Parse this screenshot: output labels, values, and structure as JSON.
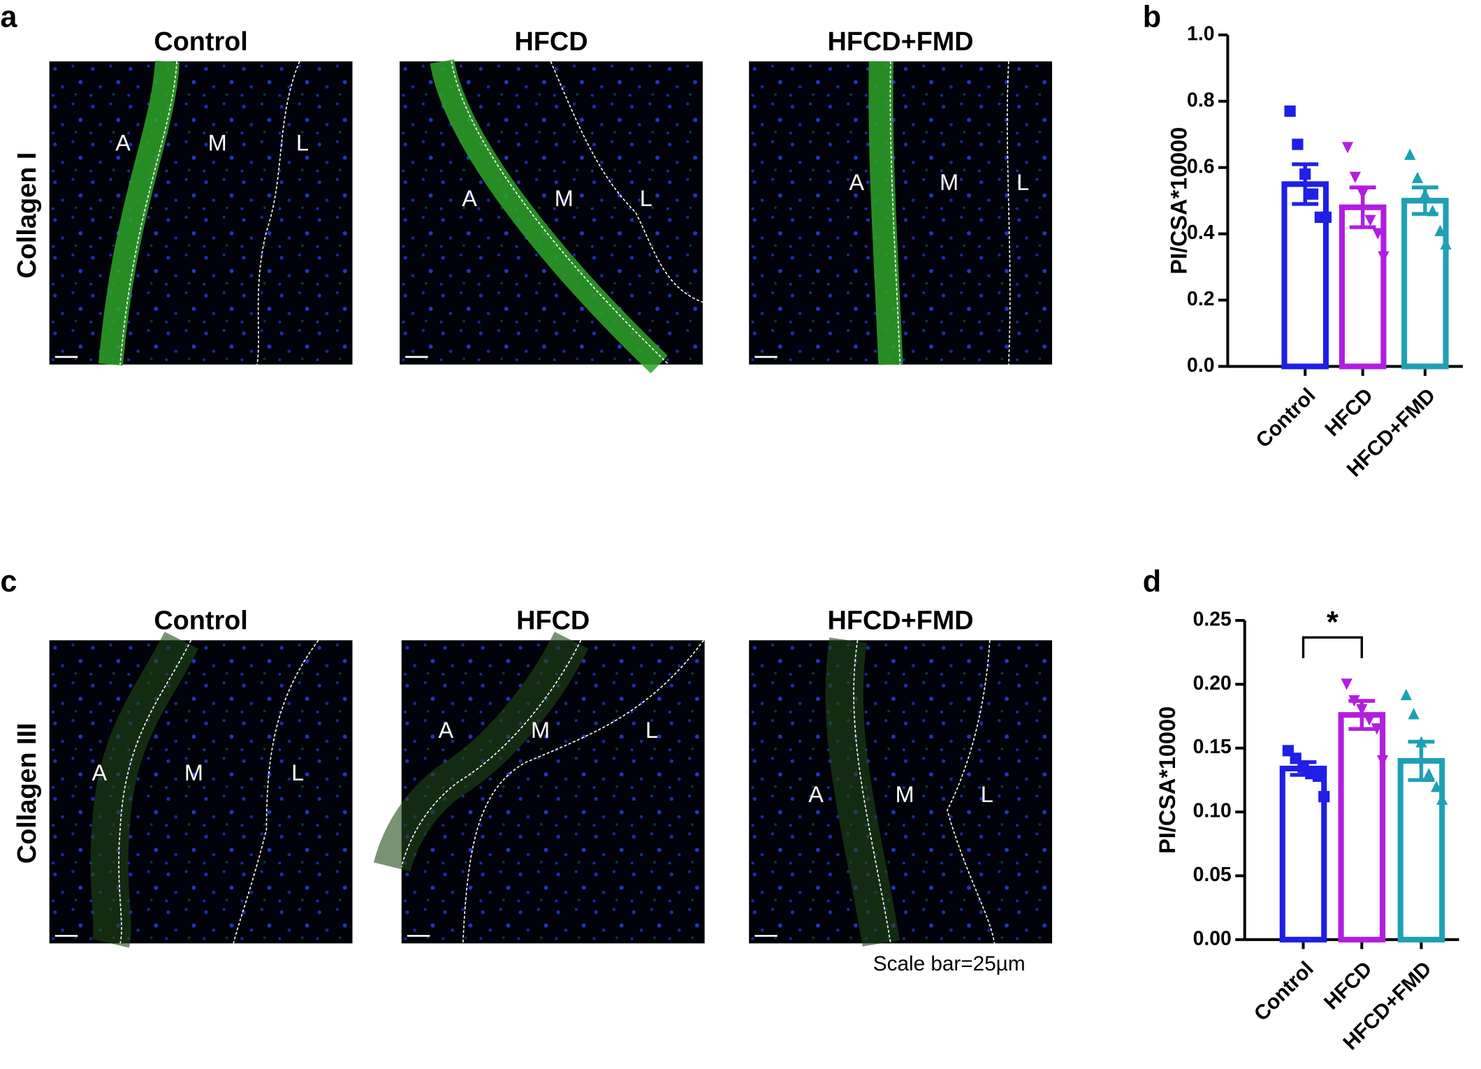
{
  "panel_labels": [
    "a",
    "b",
    "c",
    "d"
  ],
  "rows": [
    {
      "label": "Collagen I",
      "images": [
        {
          "title": "Control",
          "regions": [
            "A",
            "M",
            "L"
          ]
        },
        {
          "title": "HFCD",
          "regions": [
            "A",
            "M",
            "L"
          ]
        },
        {
          "title": "HFCD+FMD",
          "regions": [
            "A",
            "M",
            "L"
          ]
        }
      ]
    },
    {
      "label": "Collagen III",
      "images": [
        {
          "title": "Control",
          "regions": [
            "A",
            "M",
            "L"
          ]
        },
        {
          "title": "HFCD",
          "regions": [
            "A",
            "M",
            "L"
          ]
        },
        {
          "title": "HFCD+FMD",
          "regions": [
            "A",
            "M",
            "L"
          ]
        }
      ]
    }
  ],
  "scale_bar_note": "Scale bar=25µm",
  "chart_data": [
    {
      "type": "bar",
      "y_label": "PI/CSA*10000",
      "categories": [
        "Control",
        "HFCD",
        "HFCD+FMD"
      ],
      "values": [
        0.55,
        0.48,
        0.5
      ],
      "errors": [
        0.06,
        0.06,
        0.04
      ],
      "points": [
        [
          0.77,
          0.67,
          0.58,
          0.52,
          0.45,
          0.45
        ],
        [
          0.66,
          0.57,
          0.52,
          0.44,
          0.4,
          0.33
        ],
        [
          0.64,
          0.57,
          0.52,
          0.47,
          0.41,
          0.37
        ]
      ],
      "colors": [
        "#1f1fe6",
        "#b21ee0",
        "#1fa0b4"
      ],
      "markers": [
        "square",
        "triangle-down",
        "triangle-up"
      ],
      "ylim": [
        0,
        1
      ],
      "yticks": [
        {
          "value": 0,
          "label": "0.0"
        },
        0.2,
        0.4,
        0.6,
        0.8,
        {
          "value": 1,
          "label": "1.0"
        }
      ]
    },
    {
      "type": "bar",
      "y_label": "PI/CSA*10000",
      "categories": [
        "Control",
        "HFCD",
        "HFCD+FMD"
      ],
      "values": [
        0.134,
        0.176,
        0.14
      ],
      "errors": [
        0.005,
        0.011,
        0.015
      ],
      "points": [
        [
          0.148,
          0.142,
          0.135,
          0.13,
          0.128,
          0.112
        ],
        [
          0.2,
          0.187,
          0.18,
          0.172,
          0.165,
          0.14
        ],
        [
          0.192,
          0.177,
          0.155,
          0.13,
          0.12,
          0.11
        ]
      ],
      "colors": [
        "#1f1fe6",
        "#b21ee0",
        "#1fa0b4"
      ],
      "markers": [
        "square",
        "triangle-down",
        "triangle-up"
      ],
      "ylim": [
        0,
        0.25
      ],
      "yticks": [
        {
          "value": 0,
          "label": "0.00"
        },
        {
          "value": 0.05,
          "label": "0.05"
        },
        {
          "value": 0.1,
          "label": "0.10"
        },
        {
          "value": 0.15,
          "label": "0.15"
        },
        {
          "value": 0.2,
          "label": "0.20"
        },
        {
          "value": 0.25,
          "label": "0.25"
        }
      ],
      "significance": [
        {
          "label": "*",
          "between": [
            0,
            1
          ]
        }
      ]
    }
  ]
}
